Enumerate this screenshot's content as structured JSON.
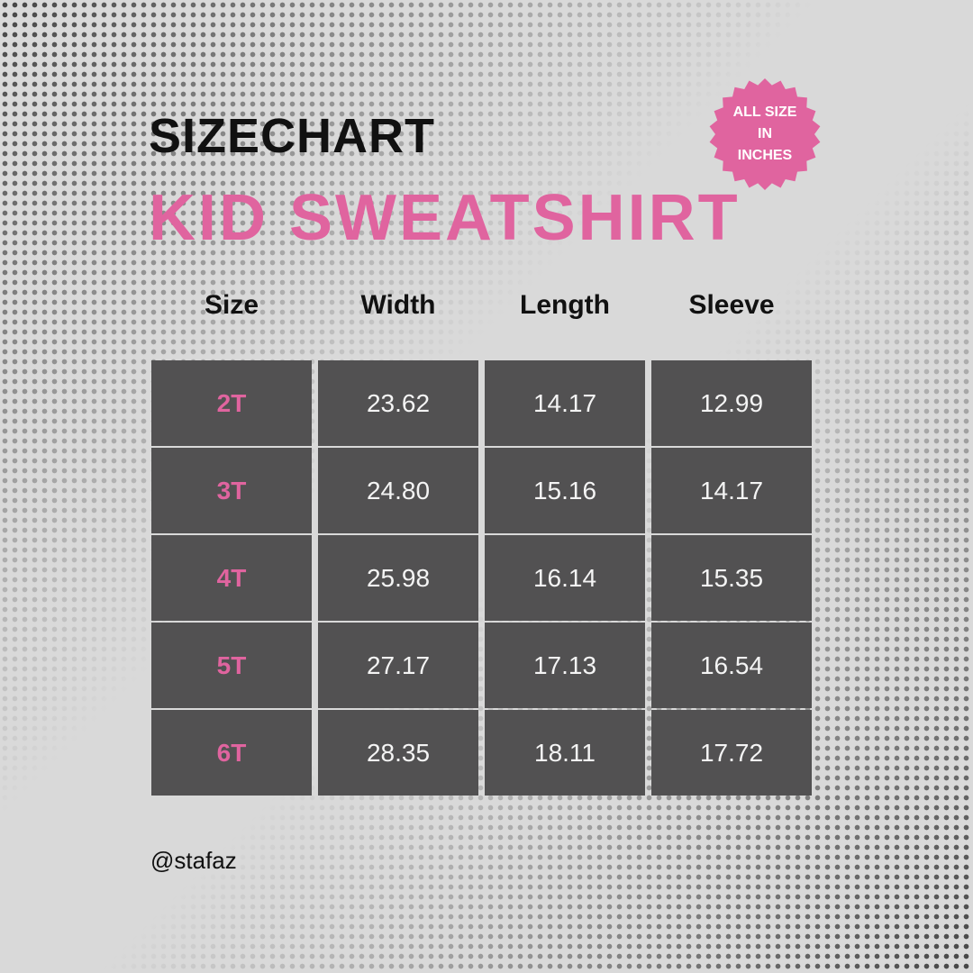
{
  "title": "SIZECHART",
  "subtitle": "KID SWEATSHIRT",
  "badge": {
    "lines": [
      "ALL SIZE",
      "IN",
      "INCHES"
    ],
    "color": "#e0649f"
  },
  "colors": {
    "accent": "#e0649f",
    "cell": "#525152",
    "background": "#d9d9d9"
  },
  "table": {
    "headers": [
      "Size",
      "Width",
      "Length",
      "Sleeve"
    ],
    "rows": [
      [
        "2T",
        "23.62",
        "14.17",
        "12.99"
      ],
      [
        "3T",
        "24.80",
        "15.16",
        "14.17"
      ],
      [
        "4T",
        "25.98",
        "16.14",
        "15.35"
      ],
      [
        "5T",
        "27.17",
        "17.13",
        "16.54"
      ],
      [
        "6T",
        "28.35",
        "18.11",
        "17.72"
      ]
    ]
  },
  "handle": "@stafaz"
}
